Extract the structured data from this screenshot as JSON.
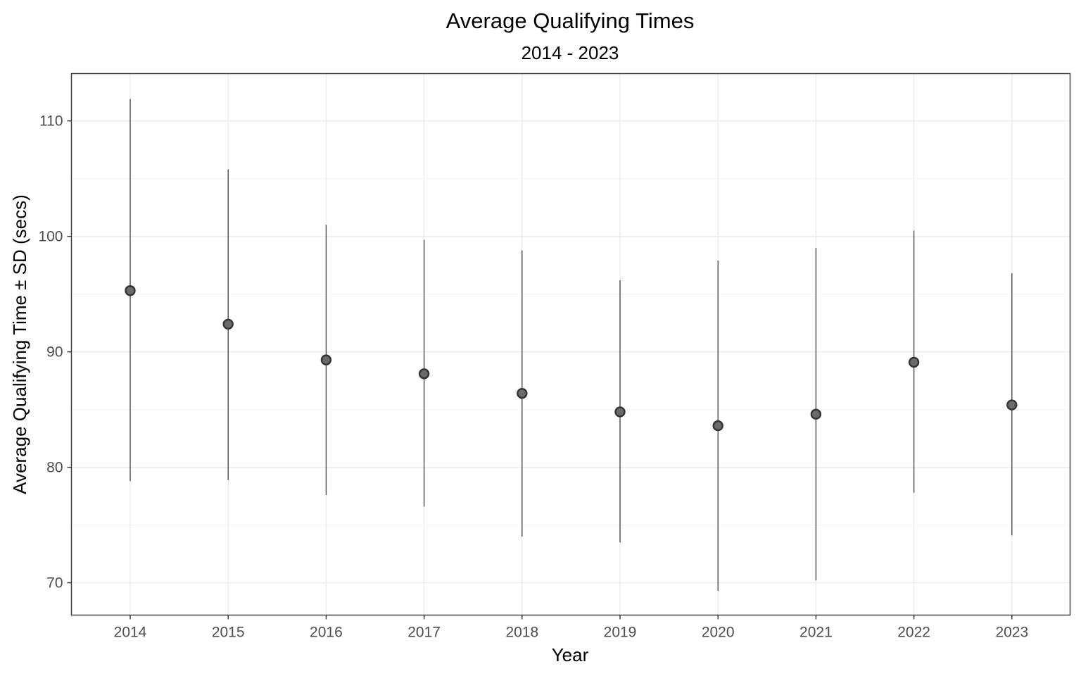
{
  "chart_data": {
    "type": "scatter",
    "title": "Average Qualifying Times",
    "subtitle": "2014 - 2023",
    "xlabel": "Year",
    "ylabel": "Average Qualifying Time ± SD (secs)",
    "categories": [
      "2014",
      "2015",
      "2016",
      "2017",
      "2018",
      "2019",
      "2020",
      "2021",
      "2022",
      "2023"
    ],
    "series": [
      {
        "values": [
          95.3,
          92.4,
          89.3,
          88.1,
          86.4,
          84.8,
          83.6,
          84.6,
          89.1,
          85.4
        ],
        "error_low": [
          78.8,
          78.9,
          77.6,
          76.6,
          74.0,
          73.5,
          69.3,
          70.2,
          77.8,
          74.1
        ],
        "error_high": [
          111.9,
          105.8,
          101.0,
          99.7,
          98.8,
          96.2,
          97.9,
          99.0,
          100.5,
          96.8
        ]
      }
    ],
    "ylim": [
      67.2,
      114.1
    ],
    "yticks": [
      "70",
      "80",
      "90",
      "100",
      "110"
    ],
    "grid": true,
    "legend": "none",
    "colors": {
      "point_fill": "#6b6b6b",
      "point_stroke": "#333333",
      "error_bar": "#4d4d4d",
      "grid": "#ebebeb",
      "panel_border": "#333333"
    }
  }
}
